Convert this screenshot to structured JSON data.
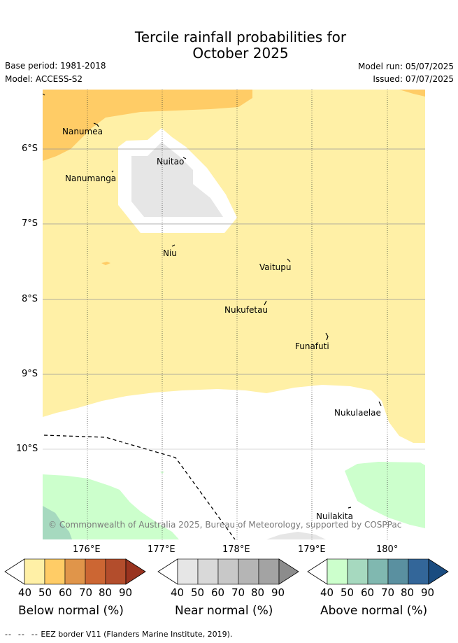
{
  "header": {
    "title_line1": "Tercile rainfall probabilities for",
    "title_line2": "October 2025",
    "base_period": "Base period: 1981-2018",
    "model": "Model: ACCESS-S2",
    "model_run": "Model run: 05/07/2025",
    "issued": "Issued: 07/07/2025"
  },
  "map": {
    "lat_labels": [
      "6°S",
      "7°S",
      "8°S",
      "9°S",
      "10°S"
    ],
    "lon_labels": [
      "176°E",
      "177°E",
      "178°E",
      "179°E",
      "180°"
    ],
    "places": [
      {
        "name": "Nanumea"
      },
      {
        "name": "Nuitao"
      },
      {
        "name": "Nanumanga"
      },
      {
        "name": "Niu"
      },
      {
        "name": "Vaitupu"
      },
      {
        "name": "Nukufetau"
      },
      {
        "name": "Funafuti"
      },
      {
        "name": "Nukulaelae"
      },
      {
        "name": "Nuilakita"
      }
    ],
    "copyright": "© Commonwealth of Australia 2025, Bureau of Meteorology, supported by COSPPac"
  },
  "colorbars": [
    {
      "title": "Below normal (%)",
      "ticks": [
        "40",
        "50",
        "60",
        "70",
        "80",
        "90"
      ],
      "colors": [
        "#fff0a6",
        "#ffcc66",
        "#e0954a",
        "#cc6633",
        "#b34d2c",
        "#99331f"
      ]
    },
    {
      "title": "Near normal (%)",
      "ticks": [
        "40",
        "50",
        "60",
        "70",
        "80",
        "90"
      ],
      "colors": [
        "#e6e6e6",
        "#d9d9d9",
        "#c8c8c8",
        "#b5b5b5",
        "#a3a3a3",
        "#8c8c8c"
      ]
    },
    {
      "title": "Above normal (%)",
      "ticks": [
        "40",
        "50",
        "60",
        "70",
        "80",
        "90"
      ],
      "colors": [
        "#ccffcc",
        "#a6d9bf",
        "#80b8b0",
        "#5a90a0",
        "#336699",
        "#1a4c80"
      ]
    }
  ],
  "footer": {
    "eez_legend": "EEZ border V11 (Flanders Marine Institute, 2019)."
  }
}
